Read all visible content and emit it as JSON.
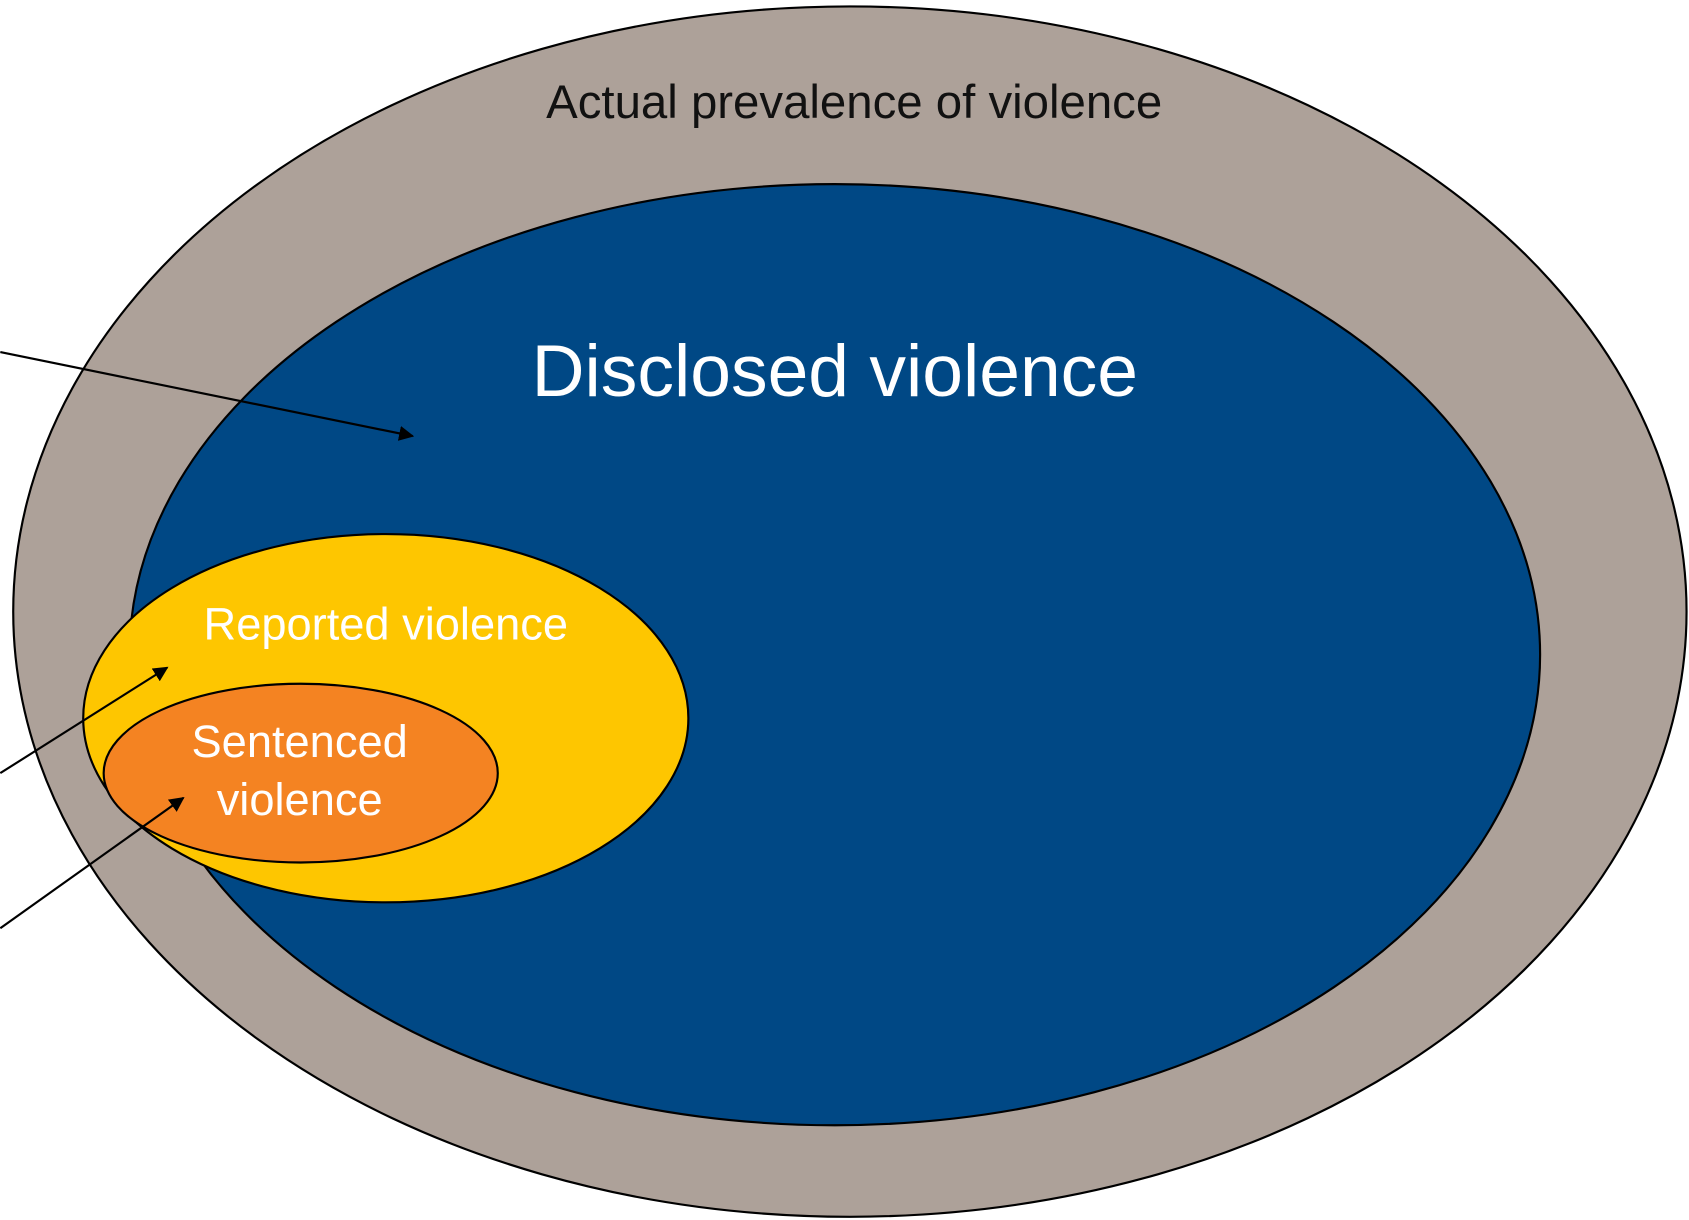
{
  "nodes": [
    {
      "label": "Actual prevalence of violence"
    },
    {
      "label": "Disclosed violence"
    },
    {
      "label": "Reported violence"
    },
    {
      "label_lines": [
        "Sentenced",
        "violence"
      ]
    }
  ]
}
